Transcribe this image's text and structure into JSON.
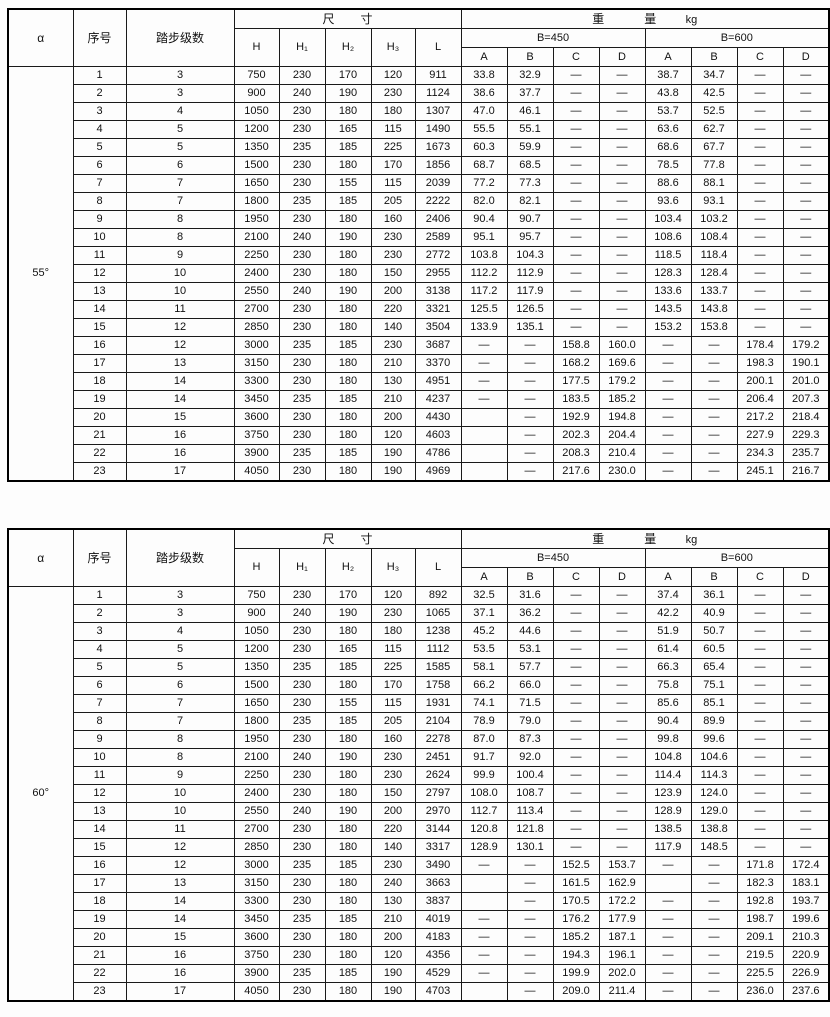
{
  "header_labels": {
    "alpha": "α",
    "serial": "序号",
    "steps": "踏步级数",
    "dim_title_1": "尺",
    "dim_title_2": "寸",
    "dim_cols": [
      "H",
      "H₁",
      "H₂",
      "H₃",
      "L"
    ],
    "weight_title_1": "重",
    "weight_title_2": "量",
    "weight_unit": "kg",
    "b450": "B=450",
    "b600": "B=600",
    "weight_cols": [
      "A",
      "B",
      "C",
      "D",
      "A",
      "B",
      "C",
      "D"
    ]
  },
  "tables": [
    {
      "alpha": "55°",
      "rows": [
        [
          "1",
          "3",
          "750",
          "230",
          "170",
          "120",
          "911",
          "33.8",
          "32.9",
          "—",
          "—",
          "38.7",
          "34.7",
          "—",
          "—"
        ],
        [
          "2",
          "3",
          "900",
          "240",
          "190",
          "230",
          "1124",
          "38.6",
          "37.7",
          "—",
          "—",
          "43.8",
          "42.5",
          "—",
          "—"
        ],
        [
          "3",
          "4",
          "1050",
          "230",
          "180",
          "180",
          "1307",
          "47.0",
          "46.1",
          "—",
          "—",
          "53.7",
          "52.5",
          "—",
          "—"
        ],
        [
          "4",
          "5",
          "1200",
          "230",
          "165",
          "115",
          "1490",
          "55.5",
          "55.1",
          "—",
          "—",
          "63.6",
          "62.7",
          "—",
          "—"
        ],
        [
          "5",
          "5",
          "1350",
          "235",
          "185",
          "225",
          "1673",
          "60.3",
          "59.9",
          "—",
          "—",
          "68.6",
          "67.7",
          "—",
          "—"
        ],
        [
          "6",
          "6",
          "1500",
          "230",
          "180",
          "170",
          "1856",
          "68.7",
          "68.5",
          "—",
          "—",
          "78.5",
          "77.8",
          "—",
          "—"
        ],
        [
          "7",
          "7",
          "1650",
          "230",
          "155",
          "115",
          "2039",
          "77.2",
          "77.3",
          "—",
          "—",
          "88.6",
          "88.1",
          "—",
          "—"
        ],
        [
          "8",
          "7",
          "1800",
          "235",
          "185",
          "205",
          "2222",
          "82.0",
          "82.1",
          "—",
          "—",
          "93.6",
          "93.1",
          "—",
          "—"
        ],
        [
          "9",
          "8",
          "1950",
          "230",
          "180",
          "160",
          "2406",
          "90.4",
          "90.7",
          "—",
          "—",
          "103.4",
          "103.2",
          "—",
          "—"
        ],
        [
          "10",
          "8",
          "2100",
          "240",
          "190",
          "230",
          "2589",
          "95.1",
          "95.7",
          "—",
          "—",
          "108.6",
          "108.4",
          "—",
          "—"
        ],
        [
          "11",
          "9",
          "2250",
          "230",
          "180",
          "230",
          "2772",
          "103.8",
          "104.3",
          "—",
          "—",
          "118.5",
          "118.4",
          "—",
          "—"
        ],
        [
          "12",
          "10",
          "2400",
          "230",
          "180",
          "150",
          "2955",
          "112.2",
          "112.9",
          "—",
          "—",
          "128.3",
          "128.4",
          "—",
          "—"
        ],
        [
          "13",
          "10",
          "2550",
          "240",
          "190",
          "200",
          "3138",
          "117.2",
          "117.9",
          "—",
          "—",
          "133.6",
          "133.7",
          "—",
          "—"
        ],
        [
          "14",
          "11",
          "2700",
          "230",
          "180",
          "220",
          "3321",
          "125.5",
          "126.5",
          "—",
          "—",
          "143.5",
          "143.8",
          "—",
          "—"
        ],
        [
          "15",
          "12",
          "2850",
          "230",
          "180",
          "140",
          "3504",
          "133.9",
          "135.1",
          "—",
          "—",
          "153.2",
          "153.8",
          "—",
          "—"
        ],
        [
          "16",
          "12",
          "3000",
          "235",
          "185",
          "230",
          "3687",
          "—",
          "—",
          "158.8",
          "160.0",
          "—",
          "—",
          "178.4",
          "179.2"
        ],
        [
          "17",
          "13",
          "3150",
          "230",
          "180",
          "210",
          "3370",
          "—",
          "—",
          "168.2",
          "169.6",
          "—",
          "—",
          "198.3",
          "190.1"
        ],
        [
          "18",
          "14",
          "3300",
          "230",
          "180",
          "130",
          "4951",
          "—",
          "—",
          "177.5",
          "179.2",
          "—",
          "—",
          "200.1",
          "201.0"
        ],
        [
          "19",
          "14",
          "3450",
          "235",
          "185",
          "210",
          "4237",
          "—",
          "—",
          "183.5",
          "185.2",
          "—",
          "—",
          "206.4",
          "207.3"
        ],
        [
          "20",
          "15",
          "3600",
          "230",
          "180",
          "200",
          "4430",
          "",
          "—",
          "192.9",
          "194.8",
          "—",
          "—",
          "217.2",
          "218.4"
        ],
        [
          "21",
          "16",
          "3750",
          "230",
          "180",
          "120",
          "4603",
          "",
          "—",
          "202.3",
          "204.4",
          "—",
          "—",
          "227.9",
          "229.3"
        ],
        [
          "22",
          "16",
          "3900",
          "235",
          "185",
          "190",
          "4786",
          "",
          "—",
          "208.3",
          "210.4",
          "—",
          "—",
          "234.3",
          "235.7"
        ],
        [
          "23",
          "17",
          "4050",
          "230",
          "180",
          "190",
          "4969",
          "",
          "—",
          "217.6",
          "230.0",
          "—",
          "—",
          "245.1",
          "216.7"
        ]
      ]
    },
    {
      "alpha": "60°",
      "rows": [
        [
          "1",
          "3",
          "750",
          "230",
          "170",
          "120",
          "892",
          "32.5",
          "31.6",
          "—",
          "—",
          "37.4",
          "36.1",
          "—",
          "—"
        ],
        [
          "2",
          "3",
          "900",
          "240",
          "190",
          "230",
          "1065",
          "37.1",
          "36.2",
          "—",
          "—",
          "42.2",
          "40.9",
          "—",
          "—"
        ],
        [
          "3",
          "4",
          "1050",
          "230",
          "180",
          "180",
          "1238",
          "45.2",
          "44.6",
          "—",
          "—",
          "51.9",
          "50.7",
          "—",
          "—"
        ],
        [
          "4",
          "5",
          "1200",
          "230",
          "165",
          "115",
          "1112",
          "53.5",
          "53.1",
          "—",
          "—",
          "61.4",
          "60.5",
          "—",
          "—"
        ],
        [
          "5",
          "5",
          "1350",
          "235",
          "185",
          "225",
          "1585",
          "58.1",
          "57.7",
          "—",
          "—",
          "66.3",
          "65.4",
          "—",
          "—"
        ],
        [
          "6",
          "6",
          "1500",
          "230",
          "180",
          "170",
          "1758",
          "66.2",
          "66.0",
          "—",
          "—",
          "75.8",
          "75.1",
          "—",
          "—"
        ],
        [
          "7",
          "7",
          "1650",
          "230",
          "155",
          "115",
          "1931",
          "74.1",
          "71.5",
          "—",
          "—",
          "85.6",
          "85.1",
          "—",
          "—"
        ],
        [
          "8",
          "7",
          "1800",
          "235",
          "185",
          "205",
          "2104",
          "78.9",
          "79.0",
          "—",
          "—",
          "90.4",
          "89.9",
          "—",
          "—"
        ],
        [
          "9",
          "8",
          "1950",
          "230",
          "180",
          "160",
          "2278",
          "87.0",
          "87.3",
          "—",
          "—",
          "99.8",
          "99.6",
          "—",
          "—"
        ],
        [
          "10",
          "8",
          "2100",
          "240",
          "190",
          "230",
          "2451",
          "91.7",
          "92.0",
          "—",
          "—",
          "104.8",
          "104.6",
          "—",
          "—"
        ],
        [
          "11",
          "9",
          "2250",
          "230",
          "180",
          "230",
          "2624",
          "99.9",
          "100.4",
          "—",
          "—",
          "114.4",
          "114.3",
          "—",
          "—"
        ],
        [
          "12",
          "10",
          "2400",
          "230",
          "180",
          "150",
          "2797",
          "108.0",
          "108.7",
          "—",
          "—",
          "123.9",
          "124.0",
          "—",
          "—"
        ],
        [
          "13",
          "10",
          "2550",
          "240",
          "190",
          "200",
          "2970",
          "112.7",
          "113.4",
          "—",
          "—",
          "128.9",
          "129.0",
          "—",
          "—"
        ],
        [
          "14",
          "11",
          "2700",
          "230",
          "180",
          "220",
          "3144",
          "120.8",
          "121.8",
          "—",
          "—",
          "138.5",
          "138.8",
          "—",
          "—"
        ],
        [
          "15",
          "12",
          "2850",
          "230",
          "180",
          "140",
          "3317",
          "128.9",
          "130.1",
          "—",
          "—",
          "117.9",
          "148.5",
          "—",
          "—"
        ],
        [
          "16",
          "12",
          "3000",
          "235",
          "185",
          "230",
          "3490",
          "—",
          "—",
          "152.5",
          "153.7",
          "—",
          "—",
          "171.8",
          "172.4"
        ],
        [
          "17",
          "13",
          "3150",
          "230",
          "180",
          "240",
          "3663",
          "",
          "—",
          "161.5",
          "162.9",
          "",
          "—",
          "182.3",
          "183.1"
        ],
        [
          "18",
          "14",
          "3300",
          "230",
          "180",
          "130",
          "3837",
          "",
          "—",
          "170.5",
          "172.2",
          "—",
          "—",
          "192.8",
          "193.7"
        ],
        [
          "19",
          "14",
          "3450",
          "235",
          "185",
          "210",
          "4019",
          "—",
          "—",
          "176.2",
          "177.9",
          "—",
          "—",
          "198.7",
          "199.6"
        ],
        [
          "20",
          "15",
          "3600",
          "230",
          "180",
          "200",
          "4183",
          "—",
          "—",
          "185.2",
          "187.1",
          "—",
          "—",
          "209.1",
          "210.3"
        ],
        [
          "21",
          "16",
          "3750",
          "230",
          "180",
          "120",
          "4356",
          "—",
          "—",
          "194.3",
          "196.1",
          "—",
          "—",
          "219.5",
          "220.9"
        ],
        [
          "22",
          "16",
          "3900",
          "235",
          "185",
          "190",
          "4529",
          "—",
          "—",
          "199.9",
          "202.0",
          "—",
          "—",
          "225.5",
          "226.9"
        ],
        [
          "23",
          "17",
          "4050",
          "230",
          "180",
          "190",
          "4703",
          "",
          "—",
          "209.0",
          "211.4",
          "—",
          "—",
          "236.0",
          "237.6"
        ]
      ]
    }
  ]
}
